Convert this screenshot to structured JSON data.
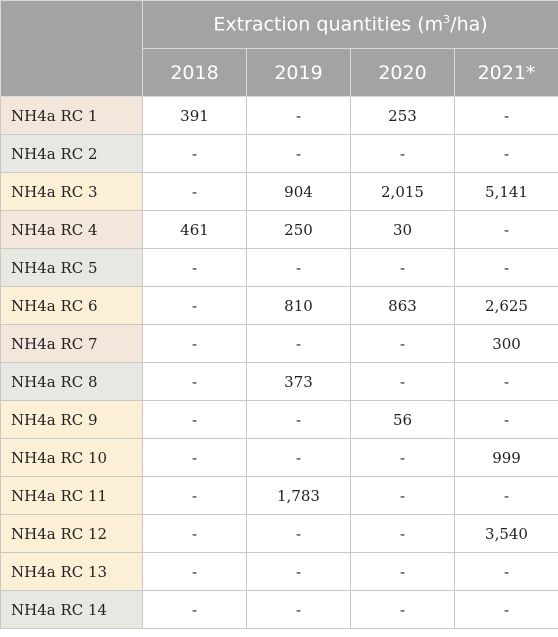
{
  "header": {
    "super_label_pre": "Extraction quantities (m",
    "super_label_sup": "3",
    "super_label_post": "/ha)",
    "years": [
      "2018",
      "2019",
      "2020",
      "2021*"
    ]
  },
  "rows": [
    {
      "label": "NH4a RC 1",
      "values": [
        "391",
        "-",
        "253",
        "-"
      ],
      "color": "#f3e6da"
    },
    {
      "label": "NH4a RC 2",
      "values": [
        "-",
        "-",
        "-",
        "-"
      ],
      "color": "#e8e8e2"
    },
    {
      "label": "NH4a RC 3",
      "values": [
        "-",
        "904",
        "2,015",
        "5,141"
      ],
      "color": "#fbf0d6"
    },
    {
      "label": "NH4a RC 4",
      "values": [
        "461",
        "250",
        "30",
        "-"
      ],
      "color": "#f3e6da"
    },
    {
      "label": "NH4a RC 5",
      "values": [
        "-",
        "-",
        "-",
        "-"
      ],
      "color": "#e8e8e2"
    },
    {
      "label": "NH4a RC 6",
      "values": [
        "-",
        "810",
        "863",
        "2,625"
      ],
      "color": "#fbf0d6"
    },
    {
      "label": "NH4a RC 7",
      "values": [
        "-",
        "-",
        "-",
        "300"
      ],
      "color": "#f3e6da"
    },
    {
      "label": "NH4a RC 8",
      "values": [
        "-",
        "373",
        "-",
        "-"
      ],
      "color": "#e8e8e2"
    },
    {
      "label": "NH4a RC 9",
      "values": [
        "-",
        "-",
        "56",
        "-"
      ],
      "color": "#fbf0d6"
    },
    {
      "label": "NH4a RC 10",
      "values": [
        "-",
        "-",
        "-",
        "999"
      ],
      "color": "#fbf0d6"
    },
    {
      "label": "NH4a RC 11",
      "values": [
        "-",
        "1,783",
        "-",
        "-"
      ],
      "color": "#fbf0d6"
    },
    {
      "label": "NH4a RC 12",
      "values": [
        "-",
        "-",
        "-",
        "3,540"
      ],
      "color": "#fbf0d6"
    },
    {
      "label": "NH4a RC 13",
      "values": [
        "-",
        "-",
        "-",
        "-"
      ],
      "color": "#fbf0d6"
    },
    {
      "label": "NH4a RC 14",
      "values": [
        "-",
        "-",
        "-",
        "-"
      ],
      "color": "#e8e8e2"
    }
  ],
  "colors": {
    "header_bg": "#a3a3a3",
    "header_text": "#ffffff"
  }
}
